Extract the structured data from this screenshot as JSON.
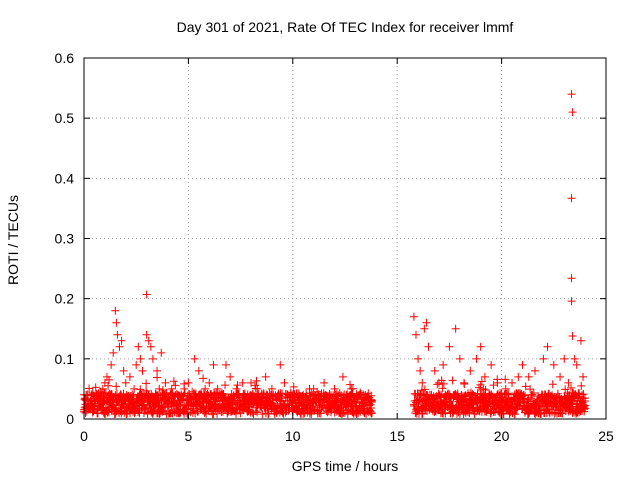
{
  "chart_data": {
    "type": "scatter",
    "title": "Day 301 of 2021, Rate Of TEC Index for receiver lmmf",
    "xlabel": "GPS time / hours",
    "ylabel": "ROTI / TECUs",
    "xlim": [
      0,
      25
    ],
    "ylim": [
      0,
      0.6
    ],
    "x_ticks": [
      0,
      5,
      10,
      15,
      20,
      25
    ],
    "x_tick_labels": [
      "0",
      "5",
      "10",
      "15",
      "20",
      "25"
    ],
    "y_ticks": [
      0,
      0.1,
      0.2,
      0.3,
      0.4,
      0.5,
      0.6
    ],
    "y_tick_labels": [
      "0",
      "0.1",
      "0.2",
      "0.3",
      "0.4",
      "0.5",
      "0.6"
    ],
    "grid": true,
    "marker": "+",
    "color": "#ff0000",
    "series": [
      {
        "points": [
          [
            0.0,
            0.012
          ],
          [
            0.1,
            0.02
          ],
          [
            0.2,
            0.03
          ],
          [
            0.3,
            0.018
          ],
          [
            0.4,
            0.025
          ],
          [
            0.5,
            0.035
          ],
          [
            0.6,
            0.04
          ],
          [
            0.7,
            0.03
          ],
          [
            0.8,
            0.045
          ],
          [
            0.9,
            0.05
          ],
          [
            1.0,
            0.06
          ],
          [
            1.1,
            0.07
          ],
          [
            1.2,
            0.065
          ],
          [
            1.3,
            0.09
          ],
          [
            1.4,
            0.11
          ],
          [
            1.5,
            0.18
          ],
          [
            1.55,
            0.16
          ],
          [
            1.6,
            0.14
          ],
          [
            1.7,
            0.12
          ],
          [
            1.8,
            0.13
          ],
          [
            1.9,
            0.08
          ],
          [
            2.0,
            0.06
          ],
          [
            2.2,
            0.07
          ],
          [
            2.4,
            0.05
          ],
          [
            2.5,
            0.09
          ],
          [
            2.6,
            0.12
          ],
          [
            2.7,
            0.1
          ],
          [
            2.8,
            0.08
          ],
          [
            3.0,
            0.207
          ],
          [
            3.0,
            0.14
          ],
          [
            3.1,
            0.13
          ],
          [
            3.2,
            0.12
          ],
          [
            3.3,
            0.1
          ],
          [
            3.5,
            0.08
          ],
          [
            3.7,
            0.11
          ],
          [
            3.9,
            0.06
          ],
          [
            4.2,
            0.05
          ],
          [
            4.5,
            0.04
          ],
          [
            4.8,
            0.05
          ],
          [
            5.0,
            0.06
          ],
          [
            5.3,
            0.1
          ],
          [
            5.5,
            0.08
          ],
          [
            5.8,
            0.05
          ],
          [
            6.0,
            0.06
          ],
          [
            6.2,
            0.09
          ],
          [
            6.4,
            0.05
          ],
          [
            6.8,
            0.09
          ],
          [
            7.0,
            0.07
          ],
          [
            7.3,
            0.05
          ],
          [
            7.6,
            0.06
          ],
          [
            8.0,
            0.06
          ],
          [
            8.3,
            0.05
          ],
          [
            8.7,
            0.07
          ],
          [
            9.0,
            0.05
          ],
          [
            9.4,
            0.09
          ],
          [
            9.6,
            0.06
          ],
          [
            10.0,
            0.04
          ],
          [
            10.5,
            0.04
          ],
          [
            10.8,
            0.05
          ],
          [
            11.0,
            0.05
          ],
          [
            11.5,
            0.06
          ],
          [
            12.0,
            0.05
          ],
          [
            12.4,
            0.07
          ],
          [
            12.8,
            0.05
          ],
          [
            13.2,
            0.04
          ],
          [
            13.7,
            0.03
          ],
          [
            15.8,
            0.17
          ],
          [
            15.9,
            0.14
          ],
          [
            16.0,
            0.1
          ],
          [
            16.1,
            0.08
          ],
          [
            16.2,
            0.06
          ],
          [
            16.3,
            0.15
          ],
          [
            16.4,
            0.16
          ],
          [
            16.5,
            0.12
          ],
          [
            16.8,
            0.08
          ],
          [
            17.0,
            0.06
          ],
          [
            17.2,
            0.09
          ],
          [
            17.5,
            0.12
          ],
          [
            17.8,
            0.15
          ],
          [
            18.0,
            0.1
          ],
          [
            18.2,
            0.06
          ],
          [
            18.5,
            0.08
          ],
          [
            18.8,
            0.1
          ],
          [
            19.0,
            0.12
          ],
          [
            19.2,
            0.07
          ],
          [
            19.5,
            0.09
          ],
          [
            19.8,
            0.06
          ],
          [
            20.2,
            0.05
          ],
          [
            20.5,
            0.06
          ],
          [
            20.8,
            0.07
          ],
          [
            21.0,
            0.09
          ],
          [
            21.3,
            0.07
          ],
          [
            21.6,
            0.08
          ],
          [
            22.0,
            0.1
          ],
          [
            22.2,
            0.12
          ],
          [
            22.5,
            0.09
          ],
          [
            22.8,
            0.07
          ],
          [
            23.0,
            0.1
          ],
          [
            23.2,
            0.06
          ],
          [
            23.35,
            0.54
          ],
          [
            23.4,
            0.51
          ],
          [
            23.35,
            0.367
          ],
          [
            23.35,
            0.234
          ],
          [
            23.35,
            0.196
          ],
          [
            23.4,
            0.138
          ],
          [
            23.5,
            0.1
          ],
          [
            23.6,
            0.09
          ],
          [
            23.8,
            0.13
          ],
          [
            23.9,
            0.07
          ],
          [
            24.0,
            0.03
          ]
        ]
      }
    ]
  }
}
